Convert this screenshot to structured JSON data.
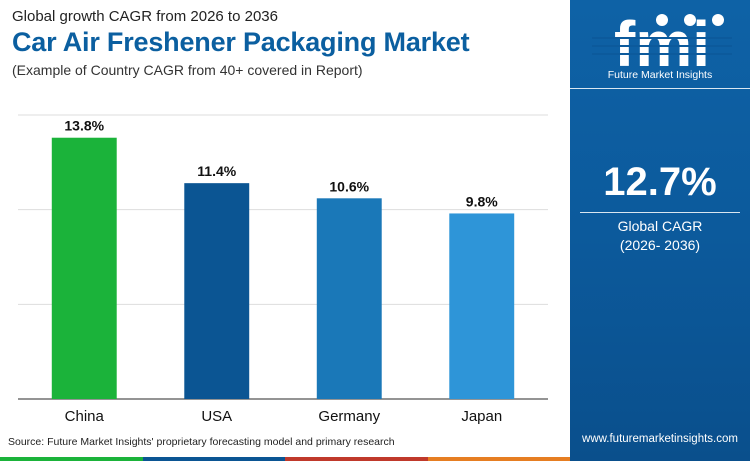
{
  "header": {
    "top_line": "Global growth CAGR from 2026 to 2036",
    "title": "Car Air Freshener Packaging Market",
    "subtitle": "(Example of Country CAGR from 40+ covered in Report)"
  },
  "chart_data": {
    "type": "bar",
    "categories": [
      "China",
      "USA",
      "Germany",
      "Japan"
    ],
    "values": [
      13.8,
      11.4,
      10.6,
      9.8
    ],
    "value_labels": [
      "13.8%",
      "11.4%",
      "10.6%",
      "9.8%"
    ],
    "bar_colors": [
      "#1bb33a",
      "#0b5593",
      "#1a78b8",
      "#2e95d8"
    ],
    "ylim": [
      0,
      15
    ],
    "gridlines": [
      0,
      5,
      10,
      15
    ],
    "grid": true,
    "title": "",
    "xlabel": "",
    "ylabel": ""
  },
  "source": "Source: Future Market Insights' proprietary forecasting model and primary research",
  "panel": {
    "logo_text": "fmi",
    "logo_subtitle": "Future Market Insights",
    "value": "12.7%",
    "label": "Global CAGR",
    "period": "(2026- 2036)",
    "url": "www.futuremarketinsights.com"
  },
  "colors": {
    "title_blue": "#0b5fa0",
    "panel_blue": "#0c5a9c",
    "strip": [
      "#1bb33a",
      "#0b5593",
      "#c0392b",
      "#e67e22"
    ]
  }
}
